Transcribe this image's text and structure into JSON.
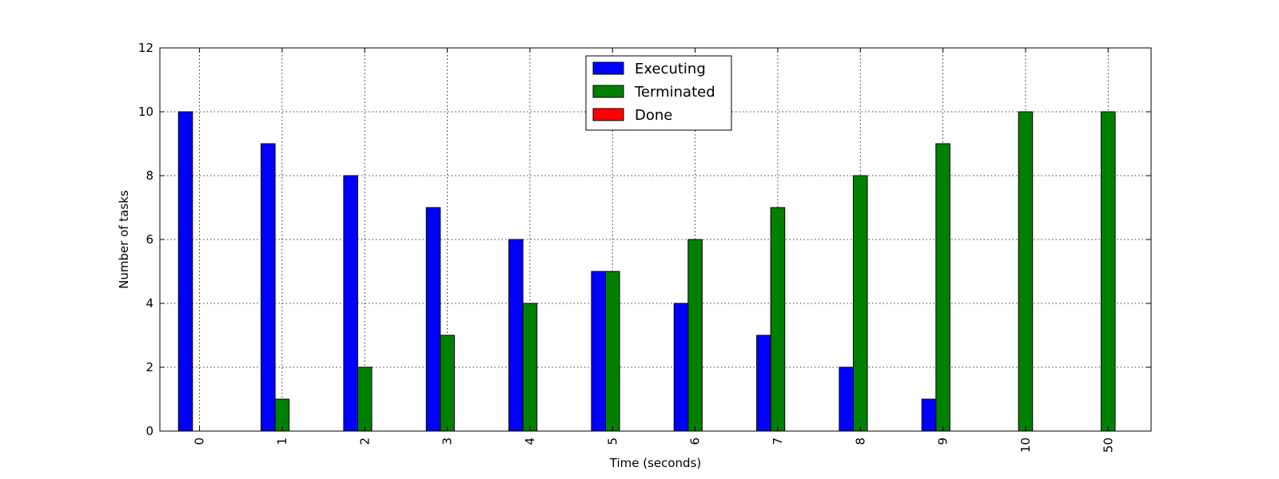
{
  "chart_data": {
    "type": "bar",
    "title": "",
    "xlabel": "Time (seconds)",
    "ylabel": "Number of tasks",
    "categories": [
      "0",
      "1",
      "2",
      "3",
      "4",
      "5",
      "6",
      "7",
      "8",
      "9",
      "10",
      "50"
    ],
    "series": [
      {
        "name": "Executing",
        "color": "#0000ff",
        "values": [
          10,
          9,
          8,
          7,
          6,
          5,
          4,
          3,
          2,
          1,
          0,
          0
        ]
      },
      {
        "name": "Terminated",
        "color": "#008000",
        "values": [
          0,
          1,
          2,
          3,
          4,
          5,
          6,
          7,
          8,
          9,
          10,
          10
        ]
      },
      {
        "name": "Done",
        "color": "#ff0000",
        "values": [
          0,
          0,
          0,
          0,
          0,
          0,
          0,
          0,
          0,
          0,
          0,
          0
        ]
      }
    ],
    "ylim": [
      0,
      12
    ],
    "yticks": [
      0,
      2,
      4,
      6,
      8,
      10,
      12
    ],
    "grid": true,
    "legend_position": "upper center",
    "xtick_rotation": "vertical"
  }
}
